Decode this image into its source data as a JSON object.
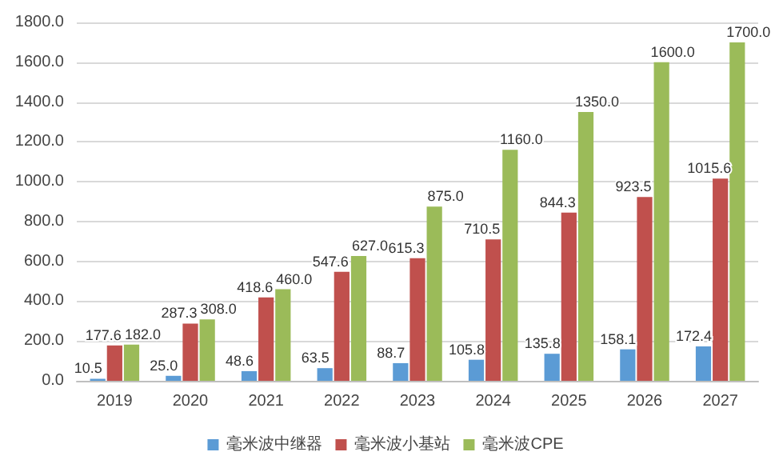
{
  "chart_data": {
    "type": "bar",
    "categories": [
      "2019",
      "2020",
      "2021",
      "2022",
      "2023",
      "2024",
      "2025",
      "2026",
      "2027"
    ],
    "series": [
      {
        "name": "毫米波中继器",
        "color": "#5b9bd5",
        "values": [
          10.5,
          25.0,
          48.6,
          63.5,
          88.7,
          105.8,
          135.8,
          158.1,
          172.4
        ],
        "value_labels": [
          "10.5",
          "25.0",
          "48.6",
          "63.5",
          "88.7",
          "105.8",
          "135.8",
          "158.1",
          "172.4"
        ]
      },
      {
        "name": "毫米波小基站",
        "color": "#c0504d",
        "values": [
          177.6,
          287.3,
          418.6,
          547.6,
          615.3,
          710.5,
          844.3,
          923.5,
          1015.6
        ],
        "value_labels": [
          "177.6",
          "287.3",
          "418.6",
          "547.6",
          "615.3",
          "710.5",
          "844.3",
          "923.5",
          "1015.6"
        ]
      },
      {
        "name": "毫米波CPE",
        "color": "#9bbb59",
        "values": [
          182.0,
          308.0,
          460.0,
          627.0,
          875.0,
          1160.0,
          1350.0,
          1600.0,
          1700.0
        ],
        "value_labels": [
          "182.0",
          "308.0",
          "460.0",
          "627.0",
          "875.0",
          "1160.0",
          "1350.0",
          "1600.0",
          "1700.0"
        ]
      }
    ],
    "ylim": [
      0,
      1800
    ],
    "yticks": [
      {
        "value": 0,
        "label": "0.0"
      },
      {
        "value": 200,
        "label": "200.0"
      },
      {
        "value": 400,
        "label": "400.0"
      },
      {
        "value": 600,
        "label": "600.0"
      },
      {
        "value": 800,
        "label": "800.0"
      },
      {
        "value": 1000,
        "label": "1000.0"
      },
      {
        "value": 1200,
        "label": "1200.0"
      },
      {
        "value": 1400,
        "label": "1400.0"
      },
      {
        "value": 1600,
        "label": "1600.0"
      },
      {
        "value": 1800,
        "label": "1800.0"
      }
    ],
    "grid": "y",
    "legend": "bottom"
  }
}
